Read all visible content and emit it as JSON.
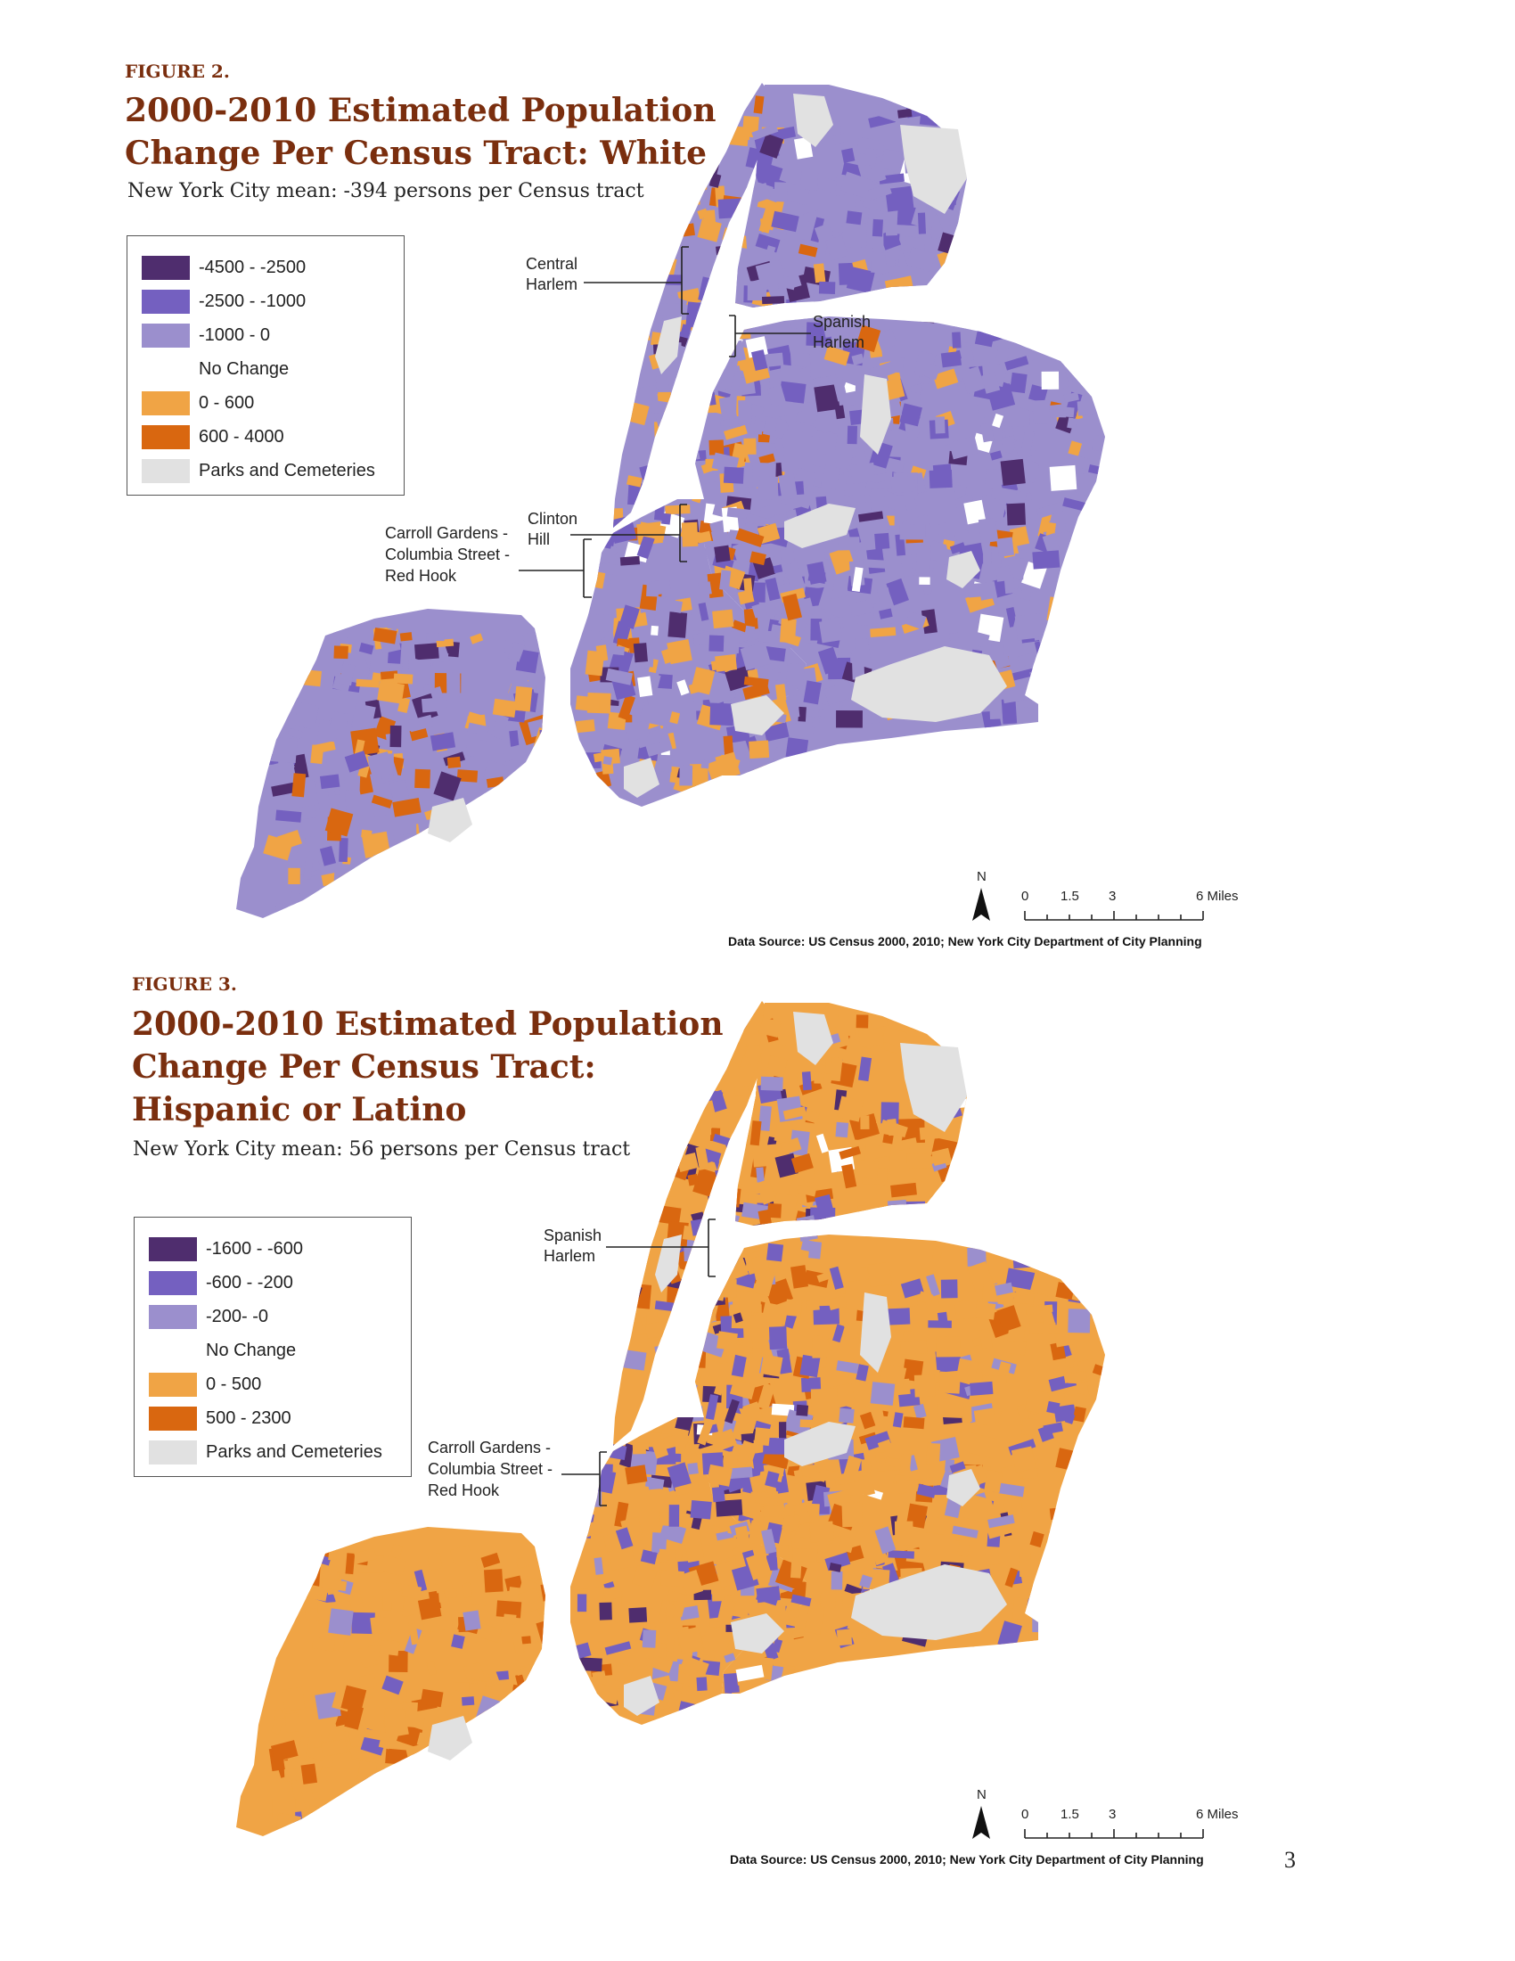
{
  "colors": {
    "dark_purple": "#4f2d6e",
    "mid_purple": "#7460c0",
    "light_purple": "#9b8fcd",
    "no_change": "#ffffff",
    "light_orange": "#f0a445",
    "dark_orange": "#d96710",
    "parks": "#e1e1e1",
    "title": "#7a2e0e"
  },
  "figure2": {
    "label": "FIGURE 2.",
    "title_lines": [
      "2000-2010 Estimated Population",
      "Change Per Census Tract: White"
    ],
    "subtitle": "New York City mean: -394 persons per Census tract",
    "legend": [
      {
        "label": "-4500 - -2500",
        "color": "#4f2d6e"
      },
      {
        "label": "-2500 - -1000",
        "color": "#7460c0"
      },
      {
        "label": "-1000 - 0",
        "color": "#9b8fcd"
      },
      {
        "label": "No Change",
        "color": "#ffffff"
      },
      {
        "label": "0 - 600",
        "color": "#f0a445"
      },
      {
        "label": "600 - 4000",
        "color": "#d96710"
      },
      {
        "label": "Parks and Cemeteries",
        "color": "#e1e1e1"
      }
    ],
    "callouts": {
      "central_harlem": [
        "Central",
        "Harlem"
      ],
      "spanish_harlem": [
        "Spanish",
        "Harlem"
      ],
      "clinton_hill": [
        "Clinton",
        "Hill"
      ],
      "carroll_gardens": [
        "Carroll Gardens -",
        "Columbia Street -",
        "Red Hook"
      ]
    },
    "north": "N",
    "scale_labels": [
      "0",
      "1.5",
      "3",
      "6 Miles"
    ],
    "source": "Data Source: US Census 2000, 2010; New York City Department of City Planning"
  },
  "figure3": {
    "label": "FIGURE 3.",
    "title_lines": [
      "2000-2010 Estimated Population",
      "Change Per Census Tract:",
      "Hispanic or Latino"
    ],
    "subtitle": "New York City mean: 56 persons per Census tract",
    "legend": [
      {
        "label": "-1600 - -600",
        "color": "#4f2d6e"
      },
      {
        "label": "-600 - -200",
        "color": "#7460c0"
      },
      {
        "label": "-200- -0",
        "color": "#9b8fcd"
      },
      {
        "label": "No Change",
        "color": "#ffffff"
      },
      {
        "label": "0 - 500",
        "color": "#f0a445"
      },
      {
        "label": "500 - 2300",
        "color": "#d96710"
      },
      {
        "label": "Parks and Cemeteries",
        "color": "#e1e1e1"
      }
    ],
    "callouts": {
      "spanish_harlem": [
        "Spanish",
        "Harlem"
      ],
      "carroll_gardens": [
        "Carroll Gardens -",
        "Columbia Street -",
        "Red Hook"
      ]
    },
    "north": "N",
    "scale_labels": [
      "0",
      "1.5",
      "3",
      "6 Miles"
    ],
    "source": "Data Source: US Census 2000, 2010; New York City Department of City Planning"
  },
  "page_number": "3"
}
